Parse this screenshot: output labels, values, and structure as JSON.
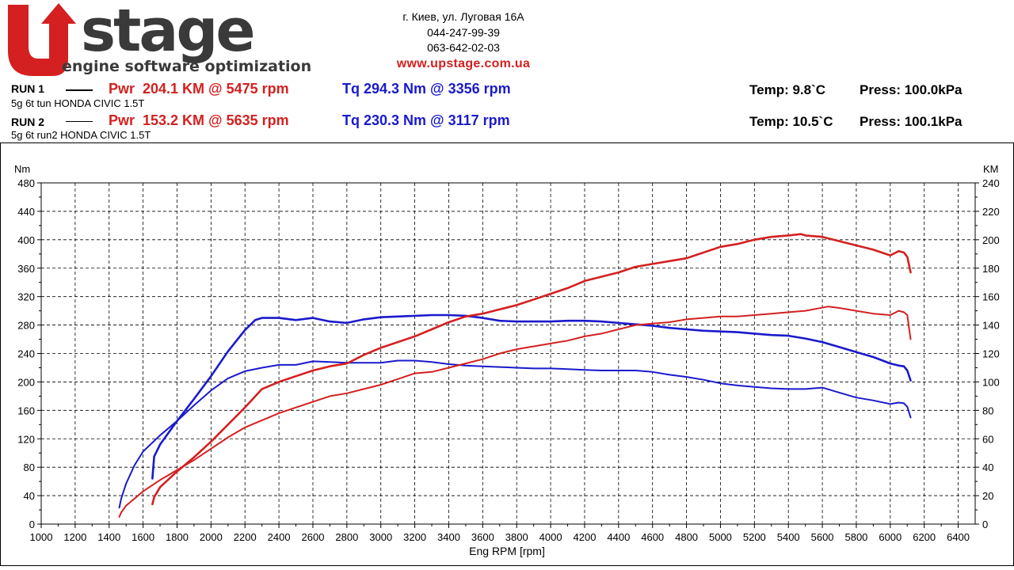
{
  "header": {
    "logo_text": "stage",
    "logo_letter": "U",
    "logo_tagline": "engine software optimization",
    "address": "г. Киев, ул. Луговая 16А",
    "phone1": "044-247-99-39",
    "phone2": "063-642-02-03",
    "website": "www.upstage.com.ua"
  },
  "runs": [
    {
      "label": "RUN 1",
      "description": "5g 6t tun HONDA CIVIC 1.5T",
      "power": "Pwr  204.1 KM @ 5475 rpm",
      "torque": "Tq 294.3 Nm @ 3356 rpm",
      "temp": "Temp: 9.8`C",
      "press": "Press: 100.0kPa"
    },
    {
      "label": "RUN 2",
      "description": "5g 6t run2 HONDA CIVIC 1.5T",
      "power": "Pwr  153.2 KM @ 5635 rpm",
      "torque": "Tq 230.3 Nm @ 3117 rpm",
      "temp": "Temp: 10.5`C",
      "press": "Press: 100.1kPa"
    }
  ],
  "colors": {
    "power": "#d42020",
    "torque": "#1a1acc",
    "logo_red": "#d42020",
    "logo_dark": "#3a3a3a"
  },
  "chart_data": {
    "type": "line",
    "xlabel": "Eng RPM [rpm]",
    "ylabel_left": "Nm",
    "ylabel_right": "KM",
    "xlim": [
      1000,
      6500
    ],
    "ylim_left": [
      0,
      480
    ],
    "ylim_right": [
      0,
      240
    ],
    "xticks": [
      1000,
      1200,
      1400,
      1600,
      1800,
      2000,
      2200,
      2400,
      2600,
      2800,
      3000,
      3200,
      3400,
      3600,
      3800,
      4000,
      4200,
      4400,
      4600,
      4800,
      5000,
      5200,
      5400,
      5600,
      5800,
      6000,
      6200,
      6400
    ],
    "yticks_left": [
      0,
      40,
      80,
      120,
      160,
      200,
      240,
      280,
      320,
      360,
      400,
      440,
      480
    ],
    "yticks_right": [
      0,
      20,
      40,
      60,
      80,
      100,
      120,
      140,
      160,
      180,
      200,
      220,
      240
    ],
    "grid": true,
    "series": [
      {
        "name": "RUN 1 Torque",
        "axis": "left",
        "color": "#1a1acc",
        "width": 2.6,
        "x": [
          1655,
          1665,
          1700,
          1800,
          1900,
          2000,
          2100,
          2200,
          2260,
          2300,
          2400,
          2500,
          2600,
          2700,
          2800,
          2900,
          3000,
          3100,
          3200,
          3300,
          3400,
          3500,
          3600,
          3700,
          3800,
          3900,
          4000,
          4100,
          4200,
          4300,
          4400,
          4500,
          4600,
          4700,
          4800,
          4900,
          5000,
          5100,
          5200,
          5300,
          5400,
          5500,
          5600,
          5700,
          5800,
          5900,
          6000,
          6050,
          6080,
          6100,
          6120
        ],
        "y": [
          64,
          95,
          112,
          145,
          176,
          208,
          243,
          273,
          287,
          290,
          290,
          287,
          290,
          285,
          283,
          288,
          291,
          292,
          293,
          294,
          294,
          293,
          290,
          286,
          285,
          285,
          285,
          286,
          286,
          285,
          283,
          281,
          279,
          276,
          274,
          272,
          271,
          270,
          268,
          266,
          265,
          261,
          256,
          249,
          242,
          235,
          226,
          223,
          222,
          216,
          202
        ]
      },
      {
        "name": "RUN 2 Torque",
        "axis": "left",
        "color": "#1a1acc",
        "width": 2,
        "x": [
          1460,
          1470,
          1500,
          1550,
          1600,
          1700,
          1800,
          1900,
          2000,
          2100,
          2200,
          2300,
          2400,
          2500,
          2600,
          2700,
          2800,
          2900,
          3000,
          3100,
          3200,
          3300,
          3400,
          3500,
          3600,
          3700,
          3800,
          3900,
          4000,
          4100,
          4200,
          4300,
          4400,
          4500,
          4600,
          4700,
          4800,
          4900,
          5000,
          5100,
          5200,
          5300,
          5400,
          5500,
          5600,
          5700,
          5800,
          5900,
          6000,
          6050,
          6080,
          6100,
          6120
        ],
        "y": [
          23,
          35,
          57,
          83,
          102,
          125,
          145,
          167,
          188,
          205,
          215,
          220,
          224,
          224,
          229,
          228,
          227,
          227,
          227,
          230,
          230,
          228,
          225,
          223,
          222,
          221,
          220,
          219,
          219,
          218,
          217,
          216,
          216,
          216,
          214,
          210,
          207,
          203,
          198,
          195,
          193,
          191,
          190,
          190,
          192,
          185,
          178,
          174,
          169,
          171,
          170,
          165,
          150
        ]
      },
      {
        "name": "RUN 1 Power",
        "axis": "right",
        "color": "#d42020",
        "width": 2.6,
        "x": [
          1655,
          1665,
          1700,
          1800,
          1900,
          2000,
          2100,
          2200,
          2300,
          2400,
          2500,
          2600,
          2700,
          2800,
          2900,
          3000,
          3100,
          3200,
          3300,
          3400,
          3500,
          3600,
          3700,
          3800,
          3900,
          4000,
          4100,
          4200,
          4300,
          4400,
          4500,
          4600,
          4700,
          4800,
          4900,
          5000,
          5100,
          5200,
          5300,
          5400,
          5475,
          5500,
          5600,
          5700,
          5800,
          5900,
          6000,
          6050,
          6080,
          6100,
          6120
        ],
        "y": [
          14,
          19,
          26,
          37,
          47,
          58,
          70,
          82,
          95,
          100,
          104,
          108,
          111,
          113,
          119,
          124,
          128,
          132,
          137,
          142,
          146,
          148,
          151,
          154,
          158,
          162,
          166,
          171,
          174,
          177,
          181,
          183,
          185,
          187,
          191,
          195,
          197,
          200,
          202,
          203,
          204,
          203,
          202,
          199,
          196,
          193,
          189,
          192,
          191,
          188,
          177
        ]
      },
      {
        "name": "RUN 2 Power",
        "axis": "right",
        "color": "#d42020",
        "width": 2,
        "x": [
          1460,
          1470,
          1500,
          1550,
          1600,
          1700,
          1800,
          1900,
          2000,
          2100,
          2200,
          2300,
          2400,
          2500,
          2600,
          2700,
          2800,
          2900,
          3000,
          3100,
          3200,
          3300,
          3400,
          3500,
          3600,
          3700,
          3800,
          3900,
          4000,
          4100,
          4200,
          4300,
          4400,
          4500,
          4600,
          4700,
          4800,
          4900,
          5000,
          5100,
          5200,
          5300,
          5400,
          5500,
          5635,
          5700,
          5800,
          5900,
          6000,
          6050,
          6080,
          6100,
          6120
        ],
        "y": [
          5,
          8,
          13,
          18,
          23,
          31,
          38,
          45,
          53,
          61,
          68,
          73,
          78,
          82,
          86,
          90,
          92,
          95,
          98,
          102,
          106,
          107,
          110,
          113,
          116,
          120,
          123,
          125,
          127,
          129,
          132,
          134,
          137,
          140,
          141,
          142,
          144,
          145,
          146,
          146,
          147,
          148,
          149,
          150,
          153,
          152,
          150,
          148,
          147,
          150,
          149,
          147,
          130
        ]
      }
    ]
  }
}
